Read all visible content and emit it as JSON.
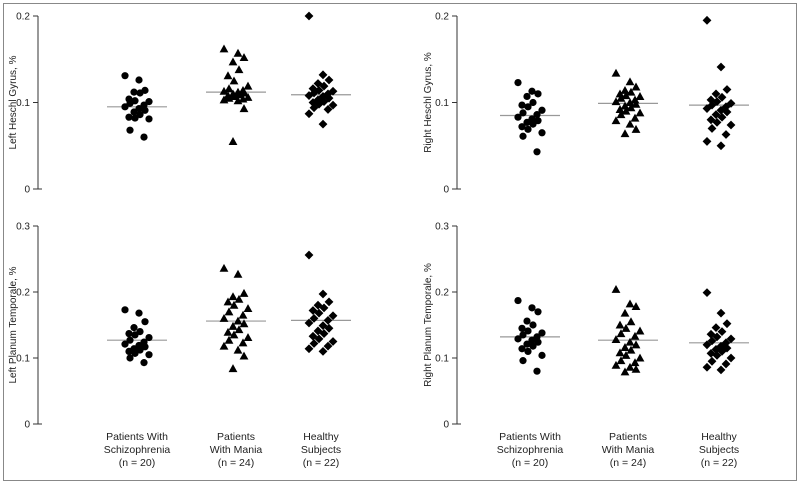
{
  "groups": [
    {
      "name": "Patients With Schizophrenia",
      "lines": [
        "Patients With",
        "Schizophrenia",
        "(n = 20)"
      ]
    },
    {
      "name": "Patients With Mania",
      "lines": [
        "Patients",
        "With Mania",
        "(n = 24)"
      ]
    },
    {
      "name": "Healthy Subjects",
      "lines": [
        "Healthy",
        "Subjects",
        "(n = 22)"
      ]
    }
  ],
  "colors": {
    "marker": "#000000",
    "mean_line": "#999999",
    "axis": "#333333",
    "frame": "#888888"
  },
  "chart_data": [
    {
      "type": "scatter",
      "ylabel": "Left Heschl Gyrus, %",
      "ylim": [
        0,
        0.2
      ],
      "yticks": [
        "0",
        "0.1",
        "0.2"
      ],
      "categories": [
        "Patients With Schizophrenia",
        "Patients With Mania",
        "Healthy Subjects"
      ],
      "series": [
        {
          "marker": "circle",
          "mean": 0.095,
          "values": [
            0.131,
            0.126,
            0.114,
            0.112,
            0.111,
            0.104,
            0.102,
            0.101,
            0.099,
            0.097,
            0.095,
            0.093,
            0.091,
            0.089,
            0.086,
            0.083,
            0.082,
            0.081,
            0.068,
            0.06
          ]
        },
        {
          "marker": "triangle",
          "mean": 0.112,
          "values": [
            0.162,
            0.157,
            0.152,
            0.147,
            0.138,
            0.131,
            0.125,
            0.119,
            0.116,
            0.114,
            0.113,
            0.112,
            0.111,
            0.11,
            0.109,
            0.108,
            0.107,
            0.106,
            0.105,
            0.104,
            0.103,
            0.102,
            0.093,
            0.055
          ]
        },
        {
          "marker": "diamond",
          "mean": 0.109,
          "values": [
            0.2,
            0.132,
            0.126,
            0.122,
            0.119,
            0.116,
            0.114,
            0.113,
            0.111,
            0.11,
            0.108,
            0.107,
            0.105,
            0.103,
            0.101,
            0.1,
            0.098,
            0.097,
            0.094,
            0.092,
            0.087,
            0.075
          ]
        }
      ]
    },
    {
      "type": "scatter",
      "ylabel": "Right Heschl Gyrus, %",
      "ylim": [
        0,
        0.2
      ],
      "yticks": [
        "0",
        "0.1",
        "0.2"
      ],
      "categories": [
        "Patients With Schizophrenia",
        "Patients With Mania",
        "Healthy Subjects"
      ],
      "series": [
        {
          "marker": "circle",
          "mean": 0.085,
          "values": [
            0.123,
            0.113,
            0.11,
            0.107,
            0.1,
            0.097,
            0.095,
            0.091,
            0.088,
            0.086,
            0.083,
            0.081,
            0.079,
            0.077,
            0.075,
            0.072,
            0.069,
            0.065,
            0.061,
            0.043
          ]
        },
        {
          "marker": "triangle",
          "mean": 0.099,
          "values": [
            0.134,
            0.124,
            0.118,
            0.114,
            0.112,
            0.11,
            0.108,
            0.107,
            0.105,
            0.103,
            0.101,
            0.1,
            0.098,
            0.096,
            0.094,
            0.092,
            0.09,
            0.088,
            0.086,
            0.082,
            0.079,
            0.075,
            0.069,
            0.064
          ]
        },
        {
          "marker": "diamond",
          "mean": 0.097,
          "values": [
            0.195,
            0.141,
            0.115,
            0.11,
            0.106,
            0.103,
            0.101,
            0.099,
            0.097,
            0.095,
            0.093,
            0.091,
            0.089,
            0.086,
            0.083,
            0.08,
            0.077,
            0.074,
            0.07,
            0.063,
            0.055,
            0.05
          ]
        }
      ]
    },
    {
      "type": "scatter",
      "ylabel": "Left Planum Temporale, %",
      "ylim": [
        0,
        0.3
      ],
      "yticks": [
        "0",
        "0.1",
        "0.2",
        "0.3"
      ],
      "categories": [
        "Patients With Schizophrenia",
        "Patients With Mania",
        "Healthy Subjects"
      ],
      "series": [
        {
          "marker": "circle",
          "mean": 0.127,
          "values": [
            0.173,
            0.168,
            0.155,
            0.146,
            0.14,
            0.137,
            0.135,
            0.131,
            0.127,
            0.124,
            0.121,
            0.119,
            0.117,
            0.114,
            0.112,
            0.11,
            0.107,
            0.105,
            0.1,
            0.093
          ]
        },
        {
          "marker": "triangle",
          "mean": 0.156,
          "values": [
            0.236,
            0.227,
            0.198,
            0.193,
            0.189,
            0.185,
            0.18,
            0.175,
            0.17,
            0.165,
            0.16,
            0.156,
            0.152,
            0.148,
            0.143,
            0.139,
            0.135,
            0.131,
            0.127,
            0.123,
            0.118,
            0.112,
            0.103,
            0.084
          ]
        },
        {
          "marker": "diamond",
          "mean": 0.157,
          "values": [
            0.256,
            0.197,
            0.185,
            0.18,
            0.176,
            0.172,
            0.168,
            0.164,
            0.16,
            0.157,
            0.153,
            0.149,
            0.145,
            0.141,
            0.137,
            0.133,
            0.129,
            0.125,
            0.122,
            0.118,
            0.114,
            0.11
          ]
        }
      ]
    },
    {
      "type": "scatter",
      "ylabel": "Right Planum Temporale, %",
      "ylim": [
        0,
        0.3
      ],
      "yticks": [
        "0",
        "0.1",
        "0.2",
        "0.3"
      ],
      "categories": [
        "Patients With Schizophrenia",
        "Patients With Mania",
        "Healthy Subjects"
      ],
      "series": [
        {
          "marker": "circle",
          "mean": 0.132,
          "values": [
            0.187,
            0.176,
            0.17,
            0.156,
            0.15,
            0.145,
            0.141,
            0.138,
            0.135,
            0.132,
            0.129,
            0.127,
            0.124,
            0.121,
            0.118,
            0.114,
            0.11,
            0.104,
            0.096,
            0.08
          ]
        },
        {
          "marker": "triangle",
          "mean": 0.127,
          "values": [
            0.204,
            0.182,
            0.178,
            0.168,
            0.155,
            0.15,
            0.145,
            0.141,
            0.137,
            0.133,
            0.128,
            0.124,
            0.12,
            0.116,
            0.112,
            0.108,
            0.104,
            0.1,
            0.096,
            0.093,
            0.089,
            0.086,
            0.083,
            0.079
          ]
        },
        {
          "marker": "diamond",
          "mean": 0.123,
          "values": [
            0.199,
            0.168,
            0.152,
            0.146,
            0.14,
            0.136,
            0.132,
            0.129,
            0.126,
            0.123,
            0.12,
            0.118,
            0.115,
            0.113,
            0.11,
            0.107,
            0.104,
            0.1,
            0.095,
            0.091,
            0.086,
            0.082
          ]
        }
      ]
    }
  ]
}
